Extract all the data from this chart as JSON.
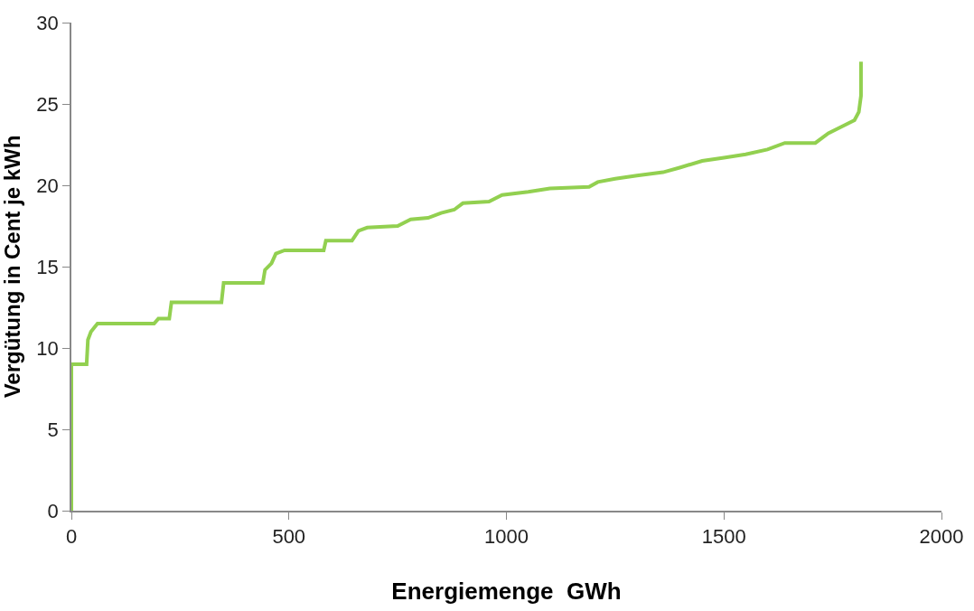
{
  "chart_data": {
    "type": "line",
    "xlabel": "Energiemenge  GWh",
    "ylabel": "Vergütung in Cent je kWh",
    "xlim": [
      0,
      2000
    ],
    "xticks": [
      0,
      500,
      1000,
      1500,
      2000
    ],
    "ylim": [
      0,
      30
    ],
    "yticks": [
      0,
      5,
      10,
      15,
      20,
      25,
      30
    ],
    "grid": false,
    "marker": "none",
    "line_style": "solid",
    "series": [
      {
        "color": "#92d050",
        "x": [
          0,
          0,
          35,
          38,
          45,
          60,
          190,
          200,
          225,
          230,
          345,
          350,
          440,
          445,
          460,
          470,
          490,
          580,
          585,
          645,
          660,
          680,
          750,
          780,
          820,
          850,
          880,
          900,
          960,
          990,
          1050,
          1100,
          1190,
          1210,
          1250,
          1300,
          1360,
          1400,
          1450,
          1500,
          1550,
          1600,
          1640,
          1710,
          1740,
          1770,
          1800,
          1810,
          1815,
          1815
        ],
        "values": [
          0,
          9,
          9,
          10.5,
          11,
          11.5,
          11.5,
          11.8,
          11.8,
          12.8,
          12.8,
          14,
          14,
          14.8,
          15.2,
          15.8,
          16,
          16,
          16.6,
          16.6,
          17.2,
          17.4,
          17.5,
          17.9,
          18,
          18.3,
          18.5,
          18.9,
          19,
          19.4,
          19.6,
          19.8,
          19.9,
          20.2,
          20.4,
          20.6,
          20.8,
          21.1,
          21.5,
          21.7,
          21.9,
          22.2,
          22.6,
          22.6,
          23.2,
          23.6,
          24,
          24.5,
          25.5,
          27.6
        ]
      }
    ]
  }
}
